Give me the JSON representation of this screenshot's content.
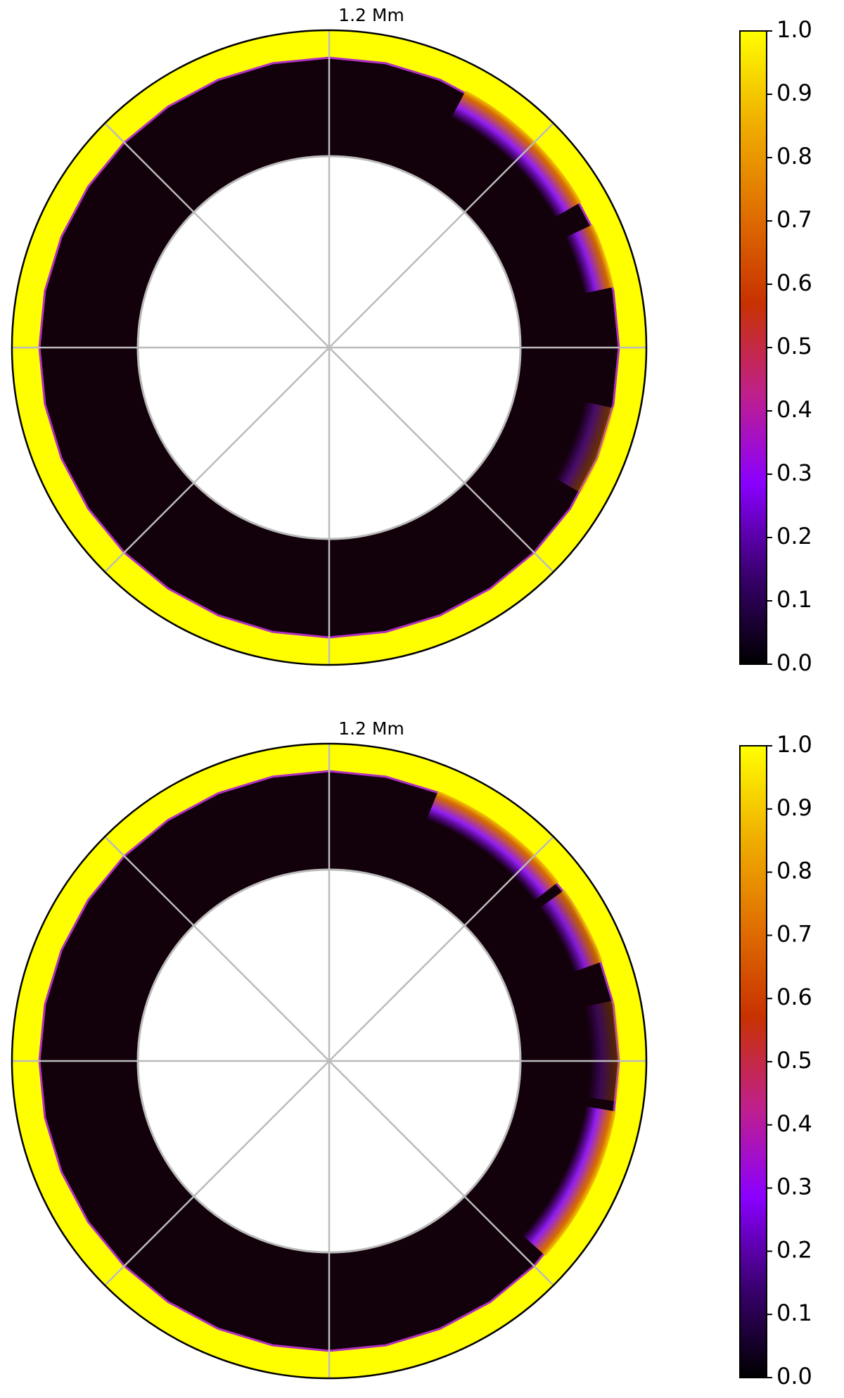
{
  "chart_data": [
    {
      "type": "polar-contour",
      "annotation": "1.2 Mm",
      "colorbar": {
        "lim": [
          0,
          1
        ],
        "colormap": [
          "#000000",
          "#3a0070",
          "#8a00ff",
          "#c0208a",
          "#c83200",
          "#e07000",
          "#f0b000",
          "#ffff00"
        ],
        "ticks": [
          {
            "value": 0,
            "label": "0.0"
          },
          0.1,
          0.2,
          0.3,
          0.4,
          0.5,
          0.6,
          0.7,
          0.8,
          0.9,
          {
            "value": 1,
            "label": "1.0"
          }
        ]
      }
    },
    {
      "type": "polar-contour",
      "annotation": "1.2 Mm",
      "colorbar": {
        "lim": [
          0,
          1
        ],
        "colormap": [
          "#000000",
          "#3a0070",
          "#8a00ff",
          "#c0208a",
          "#c83200",
          "#e07000",
          "#f0b000",
          "#ffff00"
        ],
        "ticks": [
          {
            "value": 0,
            "label": "0.0"
          },
          0.1,
          0.2,
          0.3,
          0.4,
          0.5,
          0.6,
          0.7,
          0.8,
          0.9,
          {
            "value": 1,
            "label": "1.0"
          }
        ]
      }
    }
  ]
}
